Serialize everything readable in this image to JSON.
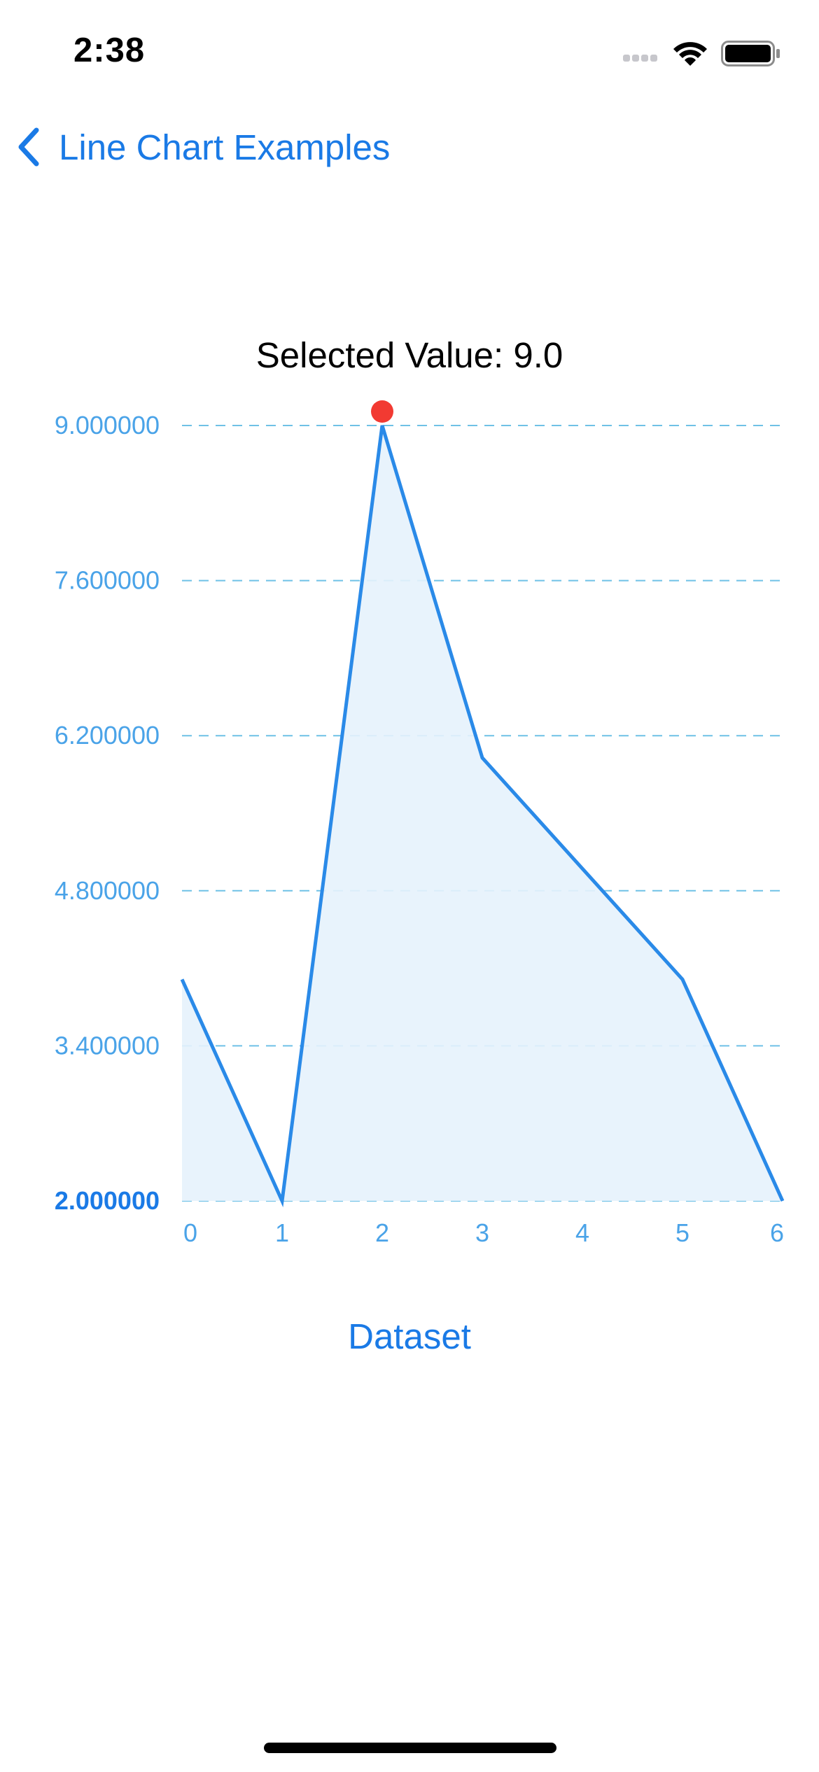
{
  "status_bar": {
    "time": "2:38",
    "signal_icon": "cellular-signal-icon",
    "wifi_icon": "wifi-icon",
    "battery_icon": "battery-icon"
  },
  "nav": {
    "back_label": "Line Chart Examples",
    "back_icon": "chevron-left-icon",
    "accent_color": "#1a7ae6"
  },
  "selected_value_text": "Selected Value: 9.0",
  "chart_data": {
    "type": "line",
    "x": [
      0,
      1,
      2,
      3,
      4,
      5,
      6
    ],
    "series": [
      {
        "values": [
          4.0,
          2.0,
          9.0,
          6.0,
          5.0,
          4.0,
          2.0
        ]
      }
    ],
    "y_ticks": [
      "9.000000",
      "7.600000",
      "6.200000",
      "4.800000",
      "3.400000",
      "2.000000"
    ],
    "y_tick_values": [
      9.0,
      7.6,
      6.2,
      4.8,
      3.4,
      2.0
    ],
    "x_ticks": [
      "0",
      "1",
      "2",
      "3",
      "4",
      "5",
      "6"
    ],
    "ylim": [
      2.0,
      9.0
    ],
    "xlim": [
      0,
      6
    ],
    "selected_index": 2,
    "grid": "horizontal-dashed",
    "line_color": "#2a8ae8",
    "fill_color": "#e6f2fc",
    "grid_color": "#6fc1e6",
    "tick_label_color": "#4aa3e8",
    "highlight_color": "#f23a32"
  },
  "dataset_button_label": "Dataset"
}
